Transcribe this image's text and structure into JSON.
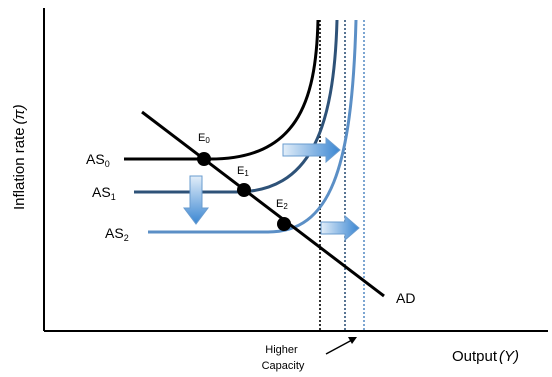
{
  "diagram": {
    "y_axis_label": "Inflation rate",
    "y_axis_symbol": "(π)",
    "x_axis_label": "Output",
    "x_axis_symbol": "(Y)",
    "curves": [
      {
        "id": "as0",
        "base": "AS",
        "sub": "0",
        "color": "#000000"
      },
      {
        "id": "as1",
        "base": "AS",
        "sub": "1",
        "color": "#2e5278"
      },
      {
        "id": "as2",
        "base": "AS",
        "sub": "2",
        "color": "#5b8fc6"
      },
      {
        "id": "ad",
        "label": "AD",
        "color": "#000000"
      }
    ],
    "equilibria": [
      {
        "base": "E",
        "sub": "0"
      },
      {
        "base": "E",
        "sub": "1"
      },
      {
        "base": "E",
        "sub": "2"
      }
    ],
    "capacity_note": [
      "Higher",
      "Capacity"
    ],
    "colors": {
      "arrow_fill_light": "#e2eef9",
      "arrow_fill_dark": "#3a86d2",
      "capacity_line_0": "#000000",
      "capacity_line_1": "#2e5278",
      "capacity_line_2": "#5b8fc6"
    }
  }
}
